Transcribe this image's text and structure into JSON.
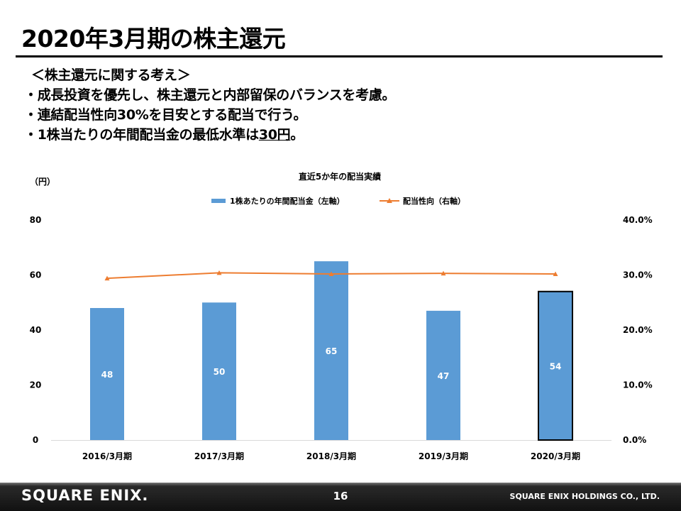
{
  "slide": {
    "title": "2020年3月期の株主還元",
    "policy_heading": "＜株主還元に関する考え＞",
    "bullet1": "・成長投資を優先し、株主還元と内部留保のバランスを考慮。",
    "bullet2": "・連結配当性向30%を目安とする配当で行う。",
    "bullet3_pre": "・1株当たりの年間配当金の最低水準は",
    "bullet3_amount": "30円",
    "bullet3_post": "。"
  },
  "chart_data": {
    "type": "bar",
    "title": "直近5か年の配当実績",
    "ylabel": "（円）",
    "categories": [
      "2016/3月期",
      "2017/3月期",
      "2018/3月期",
      "2019/3月期",
      "2020/3月期"
    ],
    "ylim": [
      0,
      80
    ],
    "y_ticks": [
      "0",
      "20",
      "40",
      "60",
      "80"
    ],
    "y2lim": [
      0,
      40
    ],
    "y2_ticks": [
      "0.0%",
      "10.0%",
      "20.0%",
      "30.0%",
      "40.0%"
    ],
    "legend_position": "top",
    "series": [
      {
        "name": "1株あたりの年間配当金（左軸）",
        "type": "bar",
        "axis": "left",
        "color": "#5b9bd5",
        "values": [
          48,
          50,
          65,
          47,
          54
        ],
        "labels": [
          "48",
          "50",
          "65",
          "47",
          "54"
        ]
      },
      {
        "name": "配当性向（右軸）",
        "type": "line",
        "axis": "right",
        "color": "#ed7d31",
        "values": [
          29.4,
          30.4,
          30.2,
          30.3,
          30.2
        ]
      }
    ],
    "highlighted_category": "2020/3月期"
  },
  "footer": {
    "logo": "SQUARE ENIX.",
    "page": "16",
    "company": "SQUARE ENIX HOLDINGS CO., LTD."
  }
}
